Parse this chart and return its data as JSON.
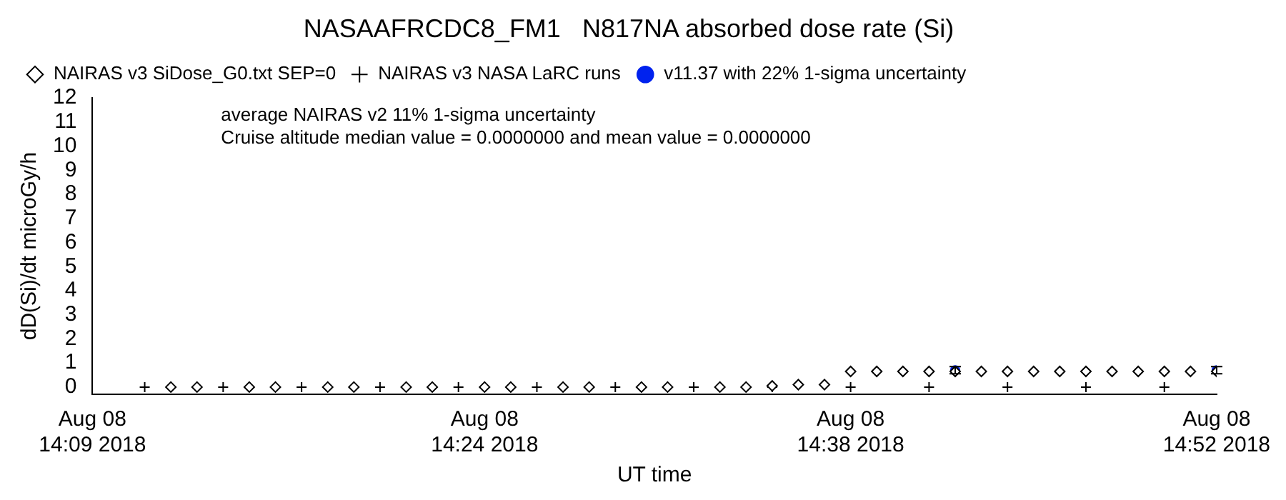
{
  "chart_data": {
    "type": "scatter",
    "title": "NASAAFRCDC8_FM1   N817NA absorbed dose rate (Si)",
    "xlabel": "UT time",
    "ylabel": "dD(Si)/dt microGy/h",
    "xlim": [
      "2018-08-08T14:09",
      "2018-08-08T14:52"
    ],
    "xticks": [
      {
        "value": "2018-08-08T14:09",
        "label": "Aug 08 14:09 2018"
      },
      {
        "value": "2018-08-08T14:24",
        "label": "Aug 08 14:24 2018"
      },
      {
        "value": "2018-08-08T14:38",
        "label": "Aug 08 14:38 2018"
      },
      {
        "value": "2018-08-08T14:52",
        "label": "Aug 08 14:52 2018"
      }
    ],
    "ylim": [
      -0.3,
      12
    ],
    "yticks": [
      0,
      1,
      2,
      3,
      4,
      5,
      6,
      7,
      8,
      9,
      10,
      11,
      12
    ],
    "grid": false,
    "legend": "top left",
    "annotations": [
      "average NAIRAS v2 11% 1-sigma uncertainty",
      "Cruise altitude median value = 0.0000000 and mean value = 0.0000000"
    ],
    "series": [
      {
        "name": "NAIRAS v3 SiDose_G0.txt SEP=0",
        "color": "#000000",
        "marker": "diamond",
        "x": [
          "2018-08-08T14:12",
          "2018-08-08T14:13",
          "2018-08-08T14:15",
          "2018-08-08T14:16",
          "2018-08-08T14:18",
          "2018-08-08T14:19",
          "2018-08-08T14:21",
          "2018-08-08T14:22",
          "2018-08-08T14:24",
          "2018-08-08T14:25",
          "2018-08-08T14:27",
          "2018-08-08T14:28",
          "2018-08-08T14:30",
          "2018-08-08T14:31",
          "2018-08-08T14:33",
          "2018-08-08T14:34",
          "2018-08-08T14:35",
          "2018-08-08T14:36",
          "2018-08-08T14:37",
          "2018-08-08T14:38",
          "2018-08-08T14:39",
          "2018-08-08T14:40",
          "2018-08-08T14:41",
          "2018-08-08T14:42",
          "2018-08-08T14:43",
          "2018-08-08T14:44",
          "2018-08-08T14:45",
          "2018-08-08T14:46",
          "2018-08-08T14:47",
          "2018-08-08T14:48",
          "2018-08-08T14:49",
          "2018-08-08T14:50",
          "2018-08-08T14:51",
          "2018-08-08T14:52"
        ],
        "values": [
          0,
          0,
          0,
          0,
          0,
          0,
          0,
          0,
          0,
          0,
          0,
          0,
          0,
          0,
          0,
          0,
          0.05,
          0.1,
          0.1,
          0.65,
          0.65,
          0.65,
          0.65,
          0.65,
          0.65,
          0.65,
          0.65,
          0.65,
          0.65,
          0.65,
          0.65,
          0.65,
          0.65,
          0.65
        ]
      },
      {
        "name": "NAIRAS v3 NASA LaRC runs",
        "color": "#000000",
        "marker": "cross",
        "x": [
          "2018-08-08T14:11",
          "2018-08-08T14:14",
          "2018-08-08T14:17",
          "2018-08-08T14:20",
          "2018-08-08T14:23",
          "2018-08-08T14:26",
          "2018-08-08T14:29",
          "2018-08-08T14:32",
          "2018-08-08T14:35",
          "2018-08-08T14:38",
          "2018-08-08T14:41",
          "2018-08-08T14:44",
          "2018-08-08T14:47",
          "2018-08-08T14:50"
        ],
        "values": [
          0,
          0,
          0,
          0,
          0,
          0,
          0,
          0,
          0,
          0,
          0,
          0,
          0,
          0
        ]
      },
      {
        "name": "v11.37 with 22% 1-sigma uncertainty",
        "color": "#0022ee",
        "marker": "circle",
        "x": [
          "2018-08-08T14:42",
          "2018-08-08T14:52"
        ],
        "values": [
          0.7,
          0.7
        ],
        "errors": [
          0.15,
          0.15
        ]
      }
    ]
  }
}
